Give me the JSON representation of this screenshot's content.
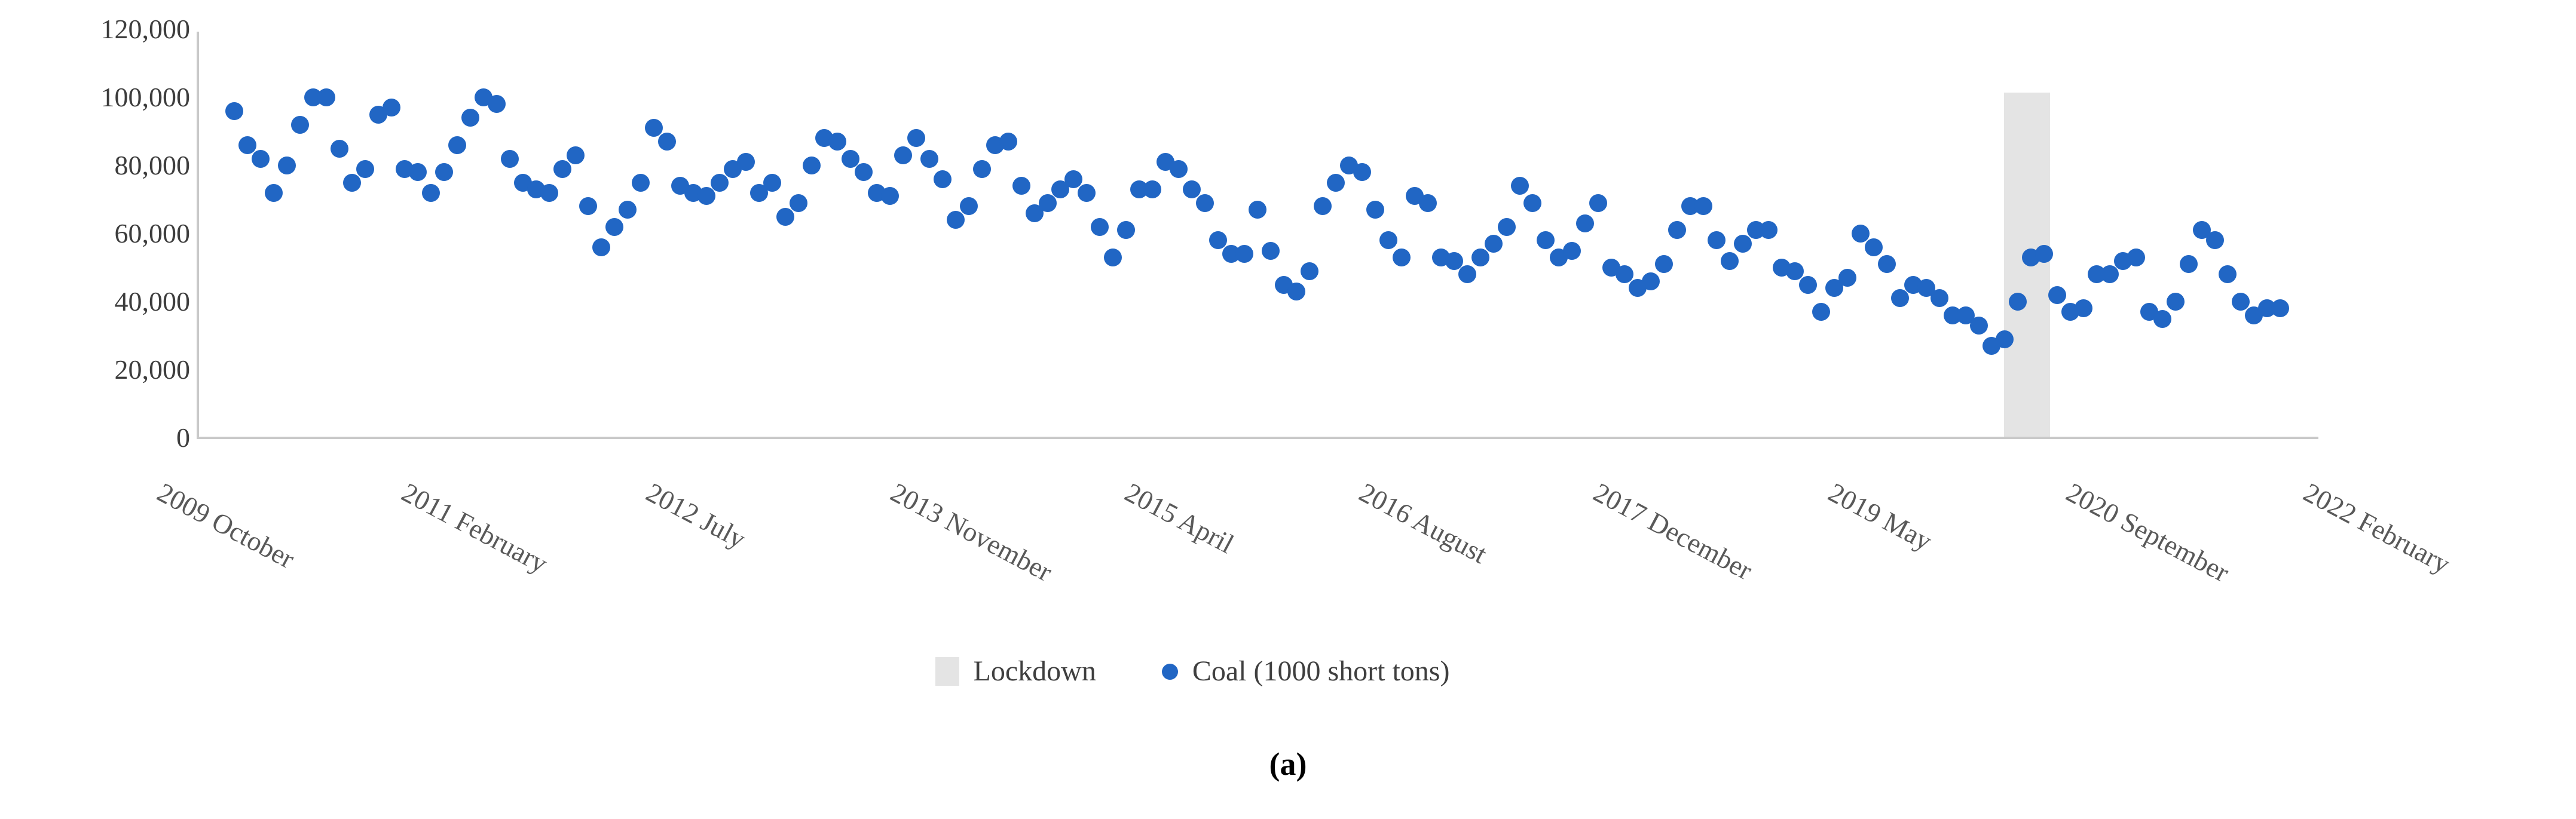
{
  "caption": "(a)",
  "colors": {
    "point": "#2166c4",
    "band": "#e4e4e4",
    "axis_line": "#c9c9c9",
    "tick_text": "#595959",
    "y_text": "#3d3d3d"
  },
  "chart_data": {
    "type": "scatter",
    "title": "",
    "xlabel": "",
    "ylabel": "",
    "ylim": [
      0,
      120000
    ],
    "grid": false,
    "legend_position": "bottom",
    "y_ticks": [
      "120,000",
      "100,000",
      "80,000",
      "60,000",
      "40,000",
      "20,000",
      "0"
    ],
    "x_tick_labels": [
      "2009 October",
      "2011 February",
      "2012 July",
      "2013 November",
      "2015 April",
      "2016 August",
      "2017 December",
      "2019 May",
      "2020 September",
      "2022 February"
    ],
    "lockdown_band": {
      "label": "Lockdown",
      "start": "2020 Apr",
      "end": "2020 Jul"
    },
    "legend": [
      {
        "label": "Lockdown",
        "marker": "square",
        "color": "#e4e4e4"
      },
      {
        "label": "Coal (1000 short tons)",
        "marker": "circle",
        "color": "#2166c4"
      }
    ],
    "series": [
      {
        "name": "Coal (1000 short tons)",
        "x": [
          "2009 Jan",
          "2009 Feb",
          "2009 Mar",
          "2009 Apr",
          "2009 May",
          "2009 Jun",
          "2009 Jul",
          "2009 Aug",
          "2009 Sep",
          "2009 Oct",
          "2009 Nov",
          "2009 Dec",
          "2010 Jan",
          "2010 Feb",
          "2010 Mar",
          "2010 Apr",
          "2010 May",
          "2010 Jun",
          "2010 Jul",
          "2010 Aug",
          "2010 Sep",
          "2010 Oct",
          "2010 Nov",
          "2010 Dec",
          "2011 Jan",
          "2011 Feb",
          "2011 Mar",
          "2011 Apr",
          "2011 May",
          "2011 Jun",
          "2011 Jul",
          "2011 Aug",
          "2011 Sep",
          "2011 Oct",
          "2011 Nov",
          "2011 Dec",
          "2012 Jan",
          "2012 Feb",
          "2012 Mar",
          "2012 Apr",
          "2012 May",
          "2012 Jun",
          "2012 Jul",
          "2012 Aug",
          "2012 Sep",
          "2012 Oct",
          "2012 Nov",
          "2012 Dec",
          "2013 Jan",
          "2013 Feb",
          "2013 Mar",
          "2013 Apr",
          "2013 May",
          "2013 Jun",
          "2013 Jul",
          "2013 Aug",
          "2013 Sep",
          "2013 Oct",
          "2013 Nov",
          "2013 Dec",
          "2014 Jan",
          "2014 Feb",
          "2014 Mar",
          "2014 Apr",
          "2014 May",
          "2014 Jun",
          "2014 Jul",
          "2014 Aug",
          "2014 Sep",
          "2014 Oct",
          "2014 Nov",
          "2014 Dec",
          "2015 Jan",
          "2015 Feb",
          "2015 Mar",
          "2015 Apr",
          "2015 May",
          "2015 Jun",
          "2015 Jul",
          "2015 Aug",
          "2015 Sep",
          "2015 Oct",
          "2015 Nov",
          "2015 Dec",
          "2016 Jan",
          "2016 Feb",
          "2016 Mar",
          "2016 Apr",
          "2016 May",
          "2016 Jun",
          "2016 Jul",
          "2016 Aug",
          "2016 Sep",
          "2016 Oct",
          "2016 Nov",
          "2016 Dec",
          "2017 Jan",
          "2017 Feb",
          "2017 Mar",
          "2017 Apr",
          "2017 May",
          "2017 Jun",
          "2017 Jul",
          "2017 Aug",
          "2017 Sep",
          "2017 Oct",
          "2017 Nov",
          "2017 Dec",
          "2018 Jan",
          "2018 Feb",
          "2018 Mar",
          "2018 Apr",
          "2018 May",
          "2018 Jun",
          "2018 Jul",
          "2018 Aug",
          "2018 Sep",
          "2018 Oct",
          "2018 Nov",
          "2018 Dec",
          "2019 Jan",
          "2019 Feb",
          "2019 Mar",
          "2019 Apr",
          "2019 May",
          "2019 Jun",
          "2019 Jul",
          "2019 Aug",
          "2019 Sep",
          "2019 Oct",
          "2019 Nov",
          "2019 Dec",
          "2020 Jan",
          "2020 Feb",
          "2020 Mar",
          "2020 Apr",
          "2020 May",
          "2020 Jun",
          "2020 Jul",
          "2020 Aug",
          "2020 Sep",
          "2020 Oct",
          "2020 Nov",
          "2020 Dec",
          "2021 Jan",
          "2021 Feb",
          "2021 Mar",
          "2021 Apr",
          "2021 May",
          "2021 Jun",
          "2021 Jul",
          "2021 Aug",
          "2021 Sep",
          "2021 Oct",
          "2021 Nov",
          "2021 Dec",
          "2022 Jan"
        ],
        "values": [
          96000,
          86000,
          82000,
          72000,
          80000,
          92000,
          100000,
          100000,
          85000,
          75000,
          79000,
          95000,
          97000,
          79000,
          78000,
          72000,
          78000,
          86000,
          94000,
          100000,
          98000,
          82000,
          75000,
          73000,
          72000,
          79000,
          83000,
          68000,
          56000,
          62000,
          67000,
          75000,
          91000,
          87000,
          74000,
          72000,
          71000,
          75000,
          79000,
          81000,
          72000,
          75000,
          65000,
          69000,
          80000,
          88000,
          87000,
          82000,
          78000,
          72000,
          71000,
          83000,
          88000,
          82000,
          76000,
          64000,
          68000,
          79000,
          86000,
          87000,
          74000,
          66000,
          69000,
          73000,
          76000,
          72000,
          62000,
          53000,
          61000,
          73000,
          73000,
          81000,
          79000,
          73000,
          69000,
          58000,
          54000,
          54000,
          67000,
          55000,
          45000,
          43000,
          49000,
          68000,
          75000,
          80000,
          78000,
          67000,
          58000,
          53000,
          71000,
          69000,
          53000,
          52000,
          48000,
          53000,
          57000,
          62000,
          74000,
          69000,
          58000,
          53000,
          55000,
          63000,
          69000,
          50000,
          48000,
          44000,
          46000,
          51000,
          61000,
          68000,
          68000,
          58000,
          52000,
          57000,
          61000,
          61000,
          50000,
          49000,
          45000,
          37000,
          44000,
          47000,
          60000,
          56000,
          51000,
          41000,
          45000,
          44000,
          41000,
          36000,
          36000,
          33000,
          27000,
          29000,
          40000,
          53000,
          54000,
          42000,
          37000,
          38000,
          48000,
          48000,
          52000,
          53000,
          37000,
          35000,
          40000,
          51000,
          61000,
          58000,
          48000,
          40000,
          36000,
          38000,
          38000
        ]
      }
    ]
  }
}
